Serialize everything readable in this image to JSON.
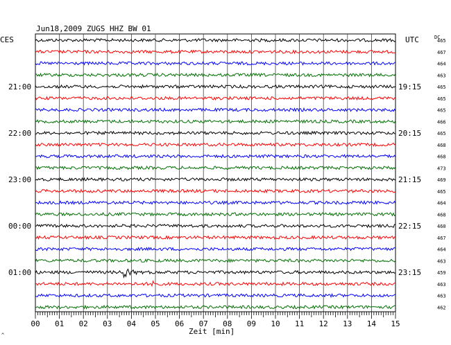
{
  "title": "Jun18,2009   ZUGS HHZ BW 01",
  "left_tz": "CES",
  "right_tz": "UTC",
  "dc_label": "DC",
  "xlabel": "Zeit [min]",
  "footer_mark": "^",
  "chart_data": {
    "type": "line",
    "title": "Jun18,2009   ZUGS HHZ BW 01",
    "xlabel": "Zeit [min]",
    "xlim": [
      0,
      15
    ],
    "x_ticks": [
      "00",
      "01",
      "02",
      "03",
      "04",
      "05",
      "06",
      "07",
      "08",
      "09",
      "10",
      "11",
      "12",
      "13",
      "14",
      "15"
    ],
    "trace_colors": [
      "#000000",
      "#ff0000",
      "#0000ff",
      "#007000"
    ],
    "left_hour_labels": [
      {
        "trace": 4,
        "label": "21:00"
      },
      {
        "trace": 8,
        "label": "22:00"
      },
      {
        "trace": 12,
        "label": "23:00"
      },
      {
        "trace": 16,
        "label": "00:00"
      },
      {
        "trace": 20,
        "label": "01:00"
      }
    ],
    "right_hour_labels": [
      {
        "trace": 4,
        "label": "19:15"
      },
      {
        "trace": 8,
        "label": "20:15"
      },
      {
        "trace": 12,
        "label": "21:15"
      },
      {
        "trace": 16,
        "label": "22:15"
      },
      {
        "trace": 20,
        "label": "23:15"
      }
    ],
    "dc_values": [
      "465",
      "467",
      "464",
      "463",
      "465",
      "465",
      "465",
      "466",
      "465",
      "468",
      "468",
      "473",
      "469",
      "465",
      "464",
      "468",
      "460",
      "467",
      "464",
      "463",
      "459",
      "463",
      "463",
      "462"
    ],
    "events": [
      {
        "trace": 20,
        "minute": 3.6,
        "label": "earthquake"
      },
      {
        "trace": 21,
        "minute": 4.9,
        "label": "spike"
      }
    ]
  }
}
